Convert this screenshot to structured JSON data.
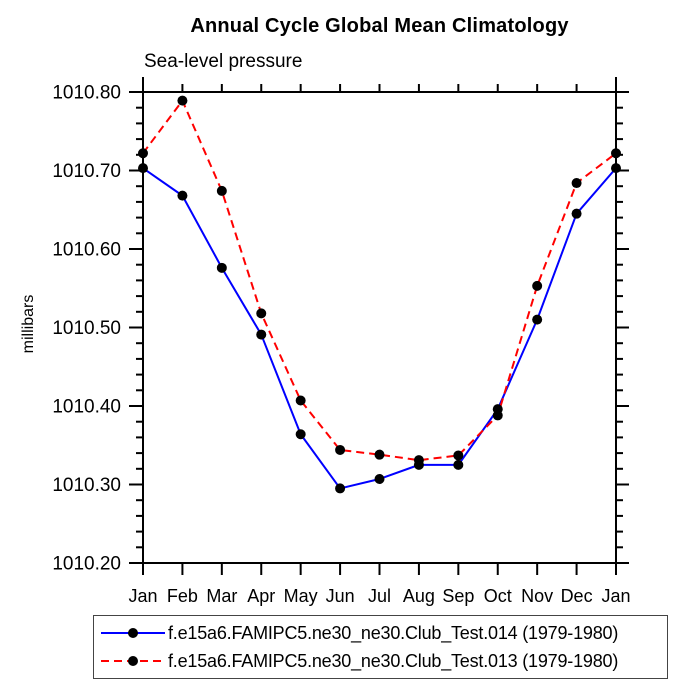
{
  "title": "Annual Cycle Global Mean Climatology",
  "subtitle": "Sea-level pressure",
  "ylabel": "millibars",
  "chart_data": {
    "type": "line",
    "x_categories": [
      "Jan",
      "Feb",
      "Mar",
      "Apr",
      "May",
      "Jun",
      "Jul",
      "Aug",
      "Sep",
      "Oct",
      "Nov",
      "Dec",
      "Jan"
    ],
    "ylim": [
      1010.2,
      1010.8
    ],
    "y_tick_values": [
      1010.2,
      1010.3,
      1010.4,
      1010.5,
      1010.6,
      1010.7,
      1010.8
    ],
    "y_tick_labels": [
      "1010.20",
      "1010.30",
      "1010.40",
      "1010.50",
      "1010.60",
      "1010.70",
      "1010.80"
    ],
    "y_minor_step": 0.02,
    "grid": "off",
    "legend_position": "bottom",
    "axis_color": "#000000",
    "marker_color": "#000000",
    "series": [
      {
        "name": "f.e15a6.FAMIPC5.ne30_ne30.Club_Test.014 (1979-1980)",
        "color": "#0000ff",
        "dash": "solid",
        "values": [
          1010.703,
          1010.668,
          1010.576,
          1010.491,
          1010.364,
          1010.295,
          1010.307,
          1010.325,
          1010.325,
          1010.396,
          1010.51,
          1010.645,
          1010.703
        ]
      },
      {
        "name": "f.e15a6.FAMIPC5.ne30_ne30.Club_Test.013 (1979-1980)",
        "color": "#ff0000",
        "dash": "dashed",
        "values": [
          1010.722,
          1010.789,
          1010.674,
          1010.518,
          1010.407,
          1010.344,
          1010.338,
          1010.331,
          1010.337,
          1010.388,
          1010.553,
          1010.684,
          1010.722
        ]
      }
    ]
  }
}
